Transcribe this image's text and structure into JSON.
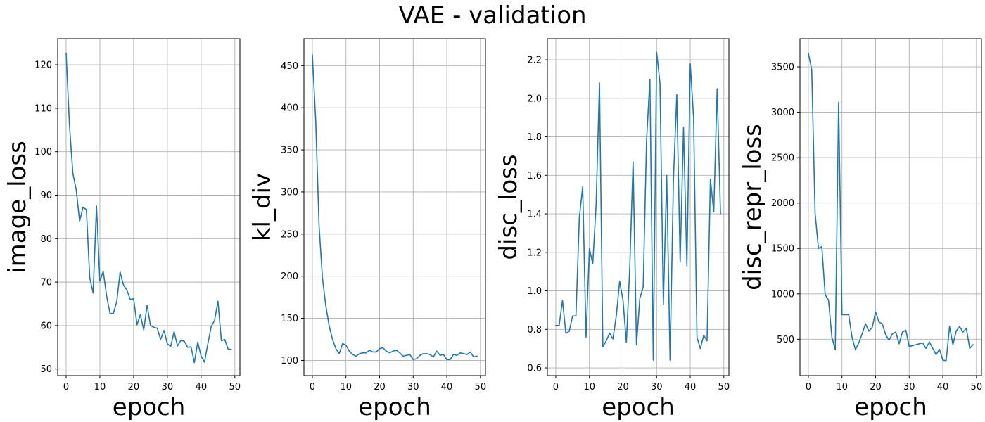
{
  "title": "VAE - validation",
  "chart_data": [
    {
      "type": "line",
      "xlabel": "epoch",
      "ylabel": "image_loss",
      "xlim": [
        -2.5,
        51.5
      ],
      "ylim": [
        48.5,
        126
      ],
      "xticks": [
        0,
        10,
        20,
        30,
        40,
        50
      ],
      "yticks": [
        50,
        60,
        70,
        80,
        90,
        100,
        110,
        120
      ],
      "grid": true,
      "color": "#1f77b4",
      "x": [
        0,
        1,
        2,
        3,
        4,
        5,
        6,
        7,
        8,
        9,
        10,
        11,
        12,
        13,
        14,
        15,
        16,
        17,
        18,
        19,
        20,
        21,
        22,
        23,
        24,
        25,
        26,
        27,
        28,
        29,
        30,
        31,
        32,
        33,
        34,
        35,
        36,
        37,
        38,
        39,
        40,
        41,
        42,
        43,
        44,
        45,
        46,
        47,
        48,
        49
      ],
      "y": [
        122.7,
        106,
        95,
        91.2,
        84,
        87.2,
        86.7,
        71,
        67.5,
        87.5,
        70.2,
        72.5,
        66.8,
        62.8,
        62.8,
        65.5,
        72.3,
        69.3,
        68.2,
        66,
        66.2,
        60.2,
        62.5,
        59,
        64.7,
        60,
        59.6,
        59.4,
        56.8,
        58.9,
        55.8,
        55.2,
        58.6,
        55.3,
        56.6,
        56.4,
        55,
        55.1,
        51.5,
        56.2,
        53,
        51.6,
        55.8,
        59.8,
        61.2,
        65.6,
        56.5,
        56.8,
        54.6,
        54.5
      ]
    },
    {
      "type": "line",
      "xlabel": "epoch",
      "ylabel": "kl_div",
      "xlim": [
        -2.5,
        51.5
      ],
      "ylim": [
        82,
        482
      ],
      "xticks": [
        0,
        10,
        20,
        30,
        40,
        50
      ],
      "yticks": [
        100,
        150,
        200,
        250,
        300,
        350,
        400,
        450
      ],
      "grid": true,
      "color": "#1f77b4",
      "x": [
        0,
        1,
        2,
        3,
        4,
        5,
        6,
        7,
        8,
        9,
        10,
        11,
        12,
        13,
        14,
        15,
        16,
        17,
        18,
        19,
        20,
        21,
        22,
        23,
        24,
        25,
        26,
        27,
        28,
        29,
        30,
        31,
        32,
        33,
        34,
        35,
        36,
        37,
        38,
        39,
        40,
        41,
        42,
        43,
        44,
        45,
        46,
        47,
        48,
        49
      ],
      "y": [
        463,
        385,
        260,
        198,
        165,
        141,
        125,
        114,
        108,
        120,
        118,
        111,
        107,
        105,
        108,
        109,
        109,
        112,
        110,
        110,
        114,
        115,
        111,
        109,
        111,
        112,
        109,
        105,
        106,
        107,
        101,
        102,
        106,
        108,
        108,
        107,
        104,
        111,
        106,
        107,
        101,
        101,
        107,
        106,
        109,
        108,
        107,
        110,
        104,
        105
      ]
    },
    {
      "type": "line",
      "xlabel": "epoch",
      "ylabel": "disc_loss",
      "xlim": [
        -2.5,
        51.5
      ],
      "ylim": [
        0.56,
        2.31
      ],
      "xticks": [
        0,
        10,
        20,
        30,
        40,
        50
      ],
      "yticks": [
        0.6,
        0.8,
        1.0,
        1.2,
        1.4,
        1.6,
        1.8,
        2.0,
        2.2
      ],
      "ytick_labels": [
        "0.6",
        "0.8",
        "1.0",
        "1.2",
        "1.4",
        "1.6",
        "1.8",
        "2.0",
        "2.2"
      ],
      "grid": true,
      "color": "#1f77b4",
      "x": [
        0,
        1,
        2,
        3,
        4,
        5,
        6,
        7,
        8,
        9,
        10,
        11,
        12,
        13,
        14,
        15,
        16,
        17,
        18,
        19,
        20,
        21,
        22,
        23,
        24,
        25,
        26,
        27,
        28,
        29,
        30,
        31,
        32,
        33,
        34,
        35,
        36,
        37,
        38,
        39,
        40,
        41,
        42,
        43,
        44,
        45,
        46,
        47,
        48,
        49
      ],
      "y": [
        0.82,
        0.82,
        0.95,
        0.78,
        0.79,
        0.87,
        0.87,
        1.38,
        1.54,
        0.76,
        1.22,
        1.14,
        1.45,
        2.08,
        0.71,
        0.74,
        0.78,
        0.75,
        0.87,
        1.05,
        0.95,
        0.73,
        1.12,
        1.67,
        0.72,
        0.96,
        1.02,
        1.78,
        2.1,
        0.64,
        2.24,
        2.08,
        0.93,
        1.6,
        0.64,
        1.58,
        2.02,
        1.15,
        1.85,
        1.13,
        2.18,
        1.9,
        0.76,
        0.7,
        0.77,
        0.74,
        1.58,
        1.41,
        2.05,
        1.4
      ]
    },
    {
      "type": "line",
      "xlabel": "epoch",
      "ylabel": "disc_repr_loss",
      "xlim": [
        -2.5,
        51.5
      ],
      "ylim": [
        100,
        3810
      ],
      "xticks": [
        0,
        10,
        20,
        30,
        40,
        50
      ],
      "yticks": [
        500,
        1000,
        1500,
        2000,
        2500,
        3000,
        3500
      ],
      "grid": true,
      "color": "#1f77b4",
      "x": [
        0,
        1,
        2,
        3,
        4,
        5,
        6,
        7,
        8,
        9,
        10,
        11,
        12,
        13,
        14,
        15,
        16,
        17,
        18,
        19,
        20,
        21,
        22,
        23,
        24,
        25,
        26,
        27,
        28,
        29,
        30,
        31,
        32,
        33,
        34,
        35,
        36,
        37,
        38,
        39,
        40,
        41,
        42,
        43,
        44,
        45,
        46,
        47,
        48,
        49
      ],
      "y": [
        3650,
        3470,
        1890,
        1500,
        1520,
        990,
        930,
        520,
        385,
        3110,
        770,
        770,
        770,
        520,
        385,
        460,
        560,
        670,
        590,
        630,
        800,
        690,
        670,
        550,
        490,
        560,
        580,
        450,
        580,
        600,
        420,
        430,
        440,
        450,
        460,
        400,
        470,
        400,
        330,
        390,
        270,
        265,
        640,
        440,
        590,
        640,
        580,
        620,
        400,
        440
      ]
    }
  ]
}
